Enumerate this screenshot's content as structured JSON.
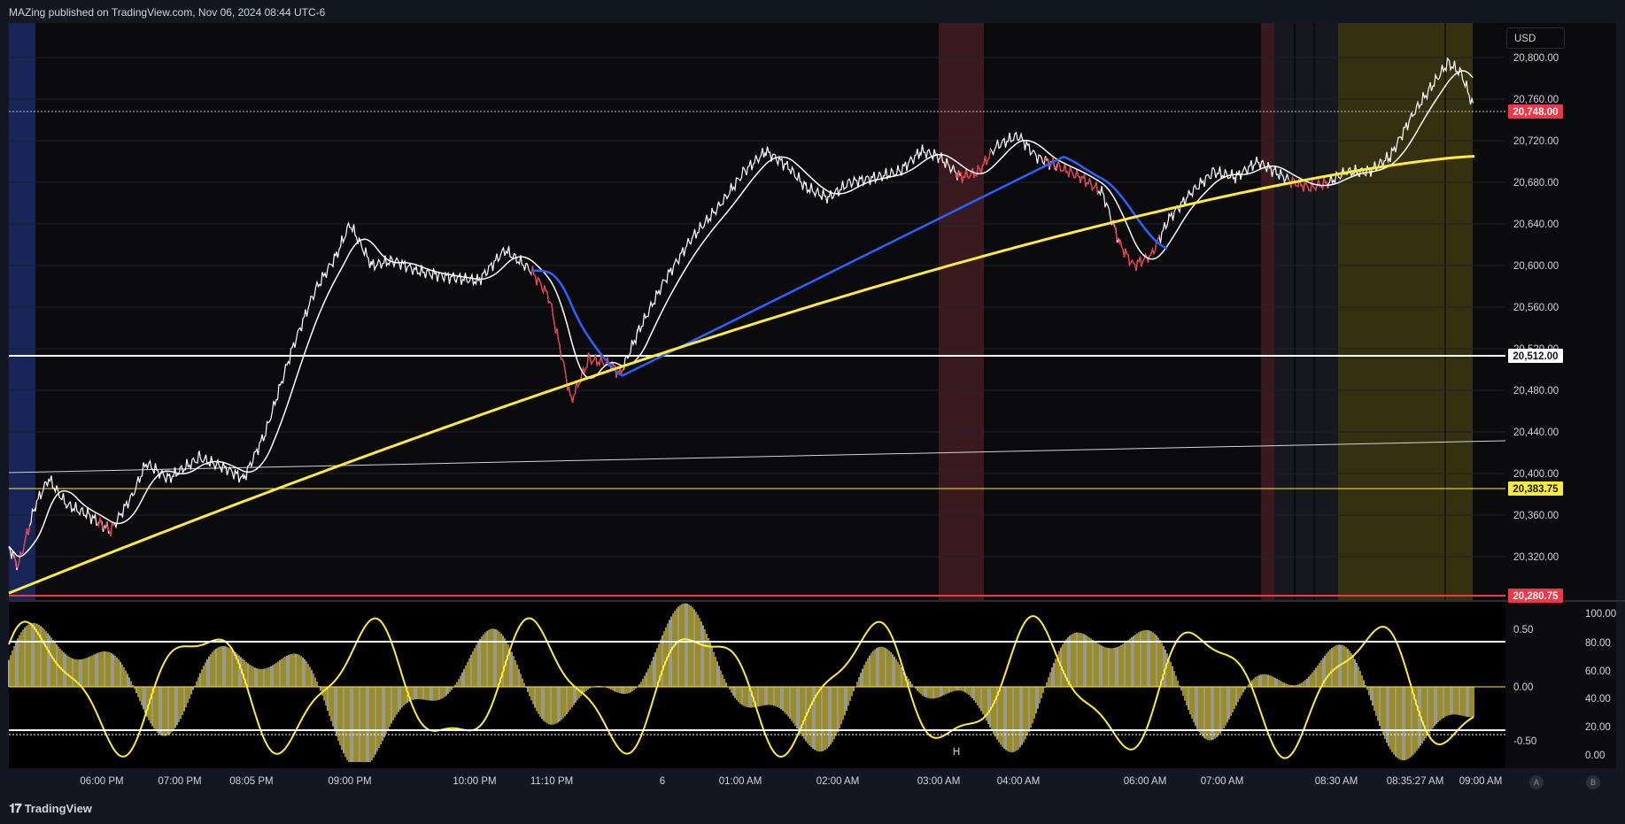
{
  "header": {
    "publisher": "MAZing published on TradingView.com, Nov 06, 2024 08:44 UTC-6"
  },
  "currency": "USD",
  "price_axis": [
    "20,800.00",
    "20,760.00",
    "20,720.00",
    "20,680.00",
    "20,640.00",
    "20,600.00",
    "20,560.00",
    "20,520.00",
    "20,480.00",
    "20,440.00",
    "20,400.00",
    "20,360.00",
    "20,320.00"
  ],
  "price_tags": {
    "last": "20,748.00",
    "level_white": "20,512.00",
    "level_yellow": "20,383.75",
    "level_red": "20,280.75"
  },
  "osc_axis_left": [
    "0.50",
    "0.00",
    "-0.50"
  ],
  "osc_axis_right": [
    "100.00",
    "80.00",
    "60.00",
    "40.00",
    "20.00",
    "0.00"
  ],
  "osc_marker": "H",
  "time_axis": [
    "06:00 PM",
    "07:00 PM",
    "08:05 PM",
    "09:00 PM",
    "10:00 PM",
    "11:10 PM",
    "6",
    "01:00 AM",
    "02:00 AM",
    "03:00 AM",
    "04:00 AM",
    "06:00 AM",
    "07:00 AM",
    "08:30 AM",
    "08:35:27 AM",
    "09:00 AM"
  ],
  "footer": {
    "brand": "TradingView",
    "btn_a": "A",
    "btn_b": "B"
  },
  "colors": {
    "bg": "#0b0b0e",
    "white": "#ffffff",
    "yellow": "#ffeb3b",
    "red": "#f23645",
    "blue": "#2962ff",
    "session_blue": "#1a2a66",
    "session_red": "#3d1a20",
    "session_yellow": "#3a3510"
  }
}
